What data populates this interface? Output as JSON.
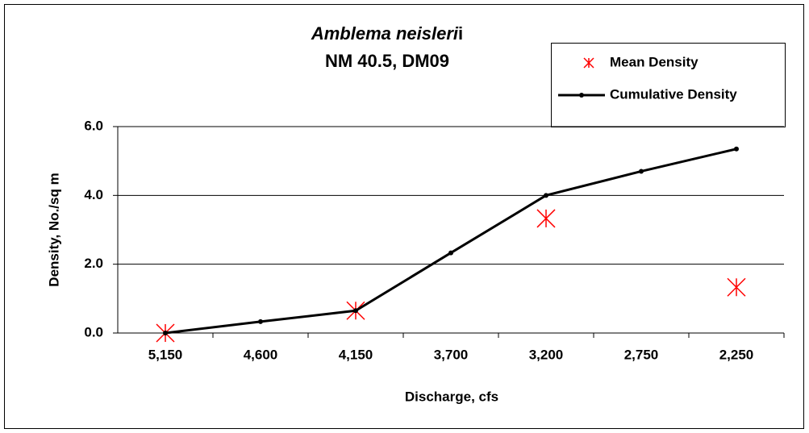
{
  "chart_data": {
    "type": "line",
    "title": "Amblema neisleri",
    "title_end": "i",
    "subtitle": "NM 40.5, DM09",
    "x_label": "Discharge, cfs",
    "y_label": "Density, No./sq m",
    "categories": [
      "5,150",
      "4,600",
      "4,150",
      "3,700",
      "3,200",
      "2,750",
      "2,250"
    ],
    "series": [
      {
        "name": "Mean Density",
        "type": "scatter",
        "color": "#ff0000",
        "values": [
          0,
          null,
          0.65,
          null,
          3.33,
          null,
          1.33
        ]
      },
      {
        "name": "Cumulative Density",
        "type": "line",
        "color": "#000000",
        "values": [
          0,
          0.33,
          0.65,
          2.33,
          4.0,
          4.7,
          5.35
        ]
      }
    ],
    "ylim": [
      0,
      6
    ],
    "yticks": [
      {
        "value": 0,
        "label": "0.0"
      },
      {
        "value": 2,
        "label": "2.0"
      },
      {
        "value": 4,
        "label": "4.0"
      },
      {
        "value": 6,
        "label": "6.0"
      }
    ],
    "grid": true,
    "legend": "top-right"
  }
}
